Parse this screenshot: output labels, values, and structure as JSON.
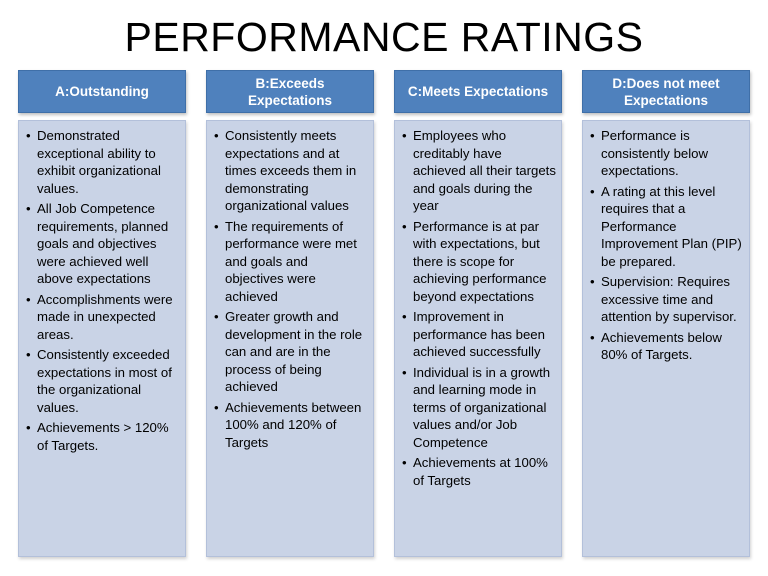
{
  "title": "PERFORMANCE RATINGS",
  "columns": [
    {
      "header": "A:Outstanding",
      "items": [
        "Demonstrated exceptional ability to exhibit organizational values.",
        "All Job Competence requirements, planned goals and objectives were achieved well above expectations",
        "Accomplishments were made in unexpected areas.",
        "Consistently exceeded expectations in most of the organizational values.",
        "Achievements > 120% of Targets."
      ]
    },
    {
      "header": "B:Exceeds Expectations",
      "items": [
        "Consistently meets expectations and at times exceeds them in demonstrating organizational values",
        "The requirements of performance were met and goals and objectives were achieved",
        "Greater growth and development in the role can and are in the process of being achieved",
        "Achievements between 100% and 120% of Targets"
      ]
    },
    {
      "header": "C:Meets Expectations",
      "items": [
        "Employees who creditably have achieved all their targets and goals during the year",
        "Performance is at par with expectations, but there is scope for achieving performance beyond expectations",
        "Improvement in performance has been achieved successfully",
        "Individual is in a growth and learning mode in terms of organizational values and/or Job Competence",
        "Achievements at 100% of Targets"
      ]
    },
    {
      "header": "D:Does not meet Expectations",
      "items": [
        "Performance is consistently below expectations.",
        "A rating at this level requires that a Performance Improvement Plan (PIP) be prepared.",
        "Supervision: Requires excessive time and attention by supervisor.",
        "Achievements below 80% of Targets."
      ]
    }
  ],
  "bullet_char": "•",
  "colors": {
    "header_bg": "#4f81bd",
    "body_bg": "#c9d3e6"
  }
}
